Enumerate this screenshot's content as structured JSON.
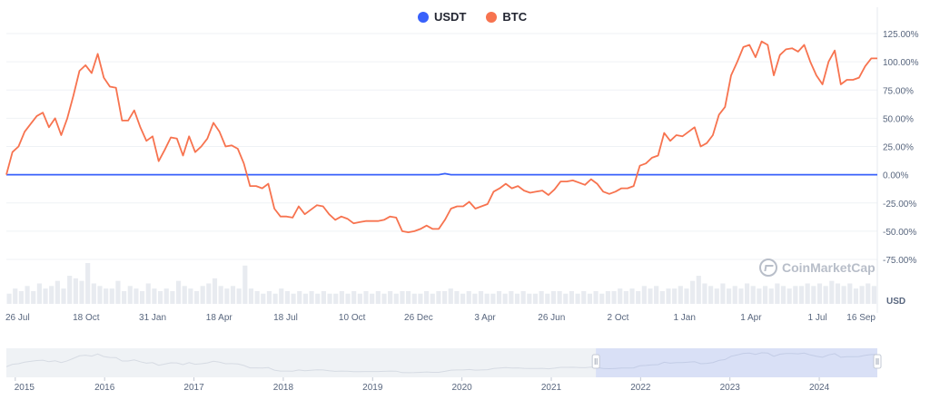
{
  "legend": [
    {
      "name": "USDT",
      "color": "#3861fb"
    },
    {
      "name": "BTC",
      "color": "#f7734f"
    }
  ],
  "watermark": "CoinMarketCap",
  "unit_label": "USD",
  "chart_data": {
    "type": "line",
    "y_axis": {
      "labels": [
        "125.00%",
        "100.00%",
        "75.00%",
        "50.00%",
        "25.00%",
        "0.00%",
        "-25.00%",
        "-50.00%",
        "-75.00%"
      ],
      "values": [
        125,
        100,
        75,
        50,
        25,
        0,
        -25,
        -50,
        -75
      ],
      "ylim": [
        -75,
        125
      ]
    },
    "x_axis": {
      "labels": [
        "26 Jul",
        "18 Oct",
        "31 Jan",
        "18 Apr",
        "18 Jul",
        "10 Oct",
        "26 Dec",
        "3 Apr",
        "26 Jun",
        "2 Oct",
        "1 Jan",
        "1 Apr",
        "1 Jul",
        "16 Sep"
      ],
      "label_index": [
        0,
        12,
        22,
        32,
        42,
        52,
        62,
        72,
        82,
        92,
        102,
        112,
        122,
        131
      ]
    },
    "series": [
      {
        "name": "BTC",
        "color": "#f7734f",
        "values": [
          0,
          20,
          25,
          38,
          45,
          52,
          55,
          42,
          50,
          35,
          50,
          70,
          92,
          97,
          90,
          107,
          86,
          78,
          77,
          48,
          48,
          57,
          42,
          30,
          34,
          12,
          22,
          33,
          32,
          17,
          34,
          20,
          25,
          32,
          46,
          38,
          25,
          26,
          23,
          10,
          -10,
          -10,
          -12,
          -8,
          -30,
          -37,
          -37,
          -38,
          -28,
          -35,
          -31,
          -27,
          -28,
          -35,
          -40,
          -37,
          -39,
          -43,
          -42,
          -41,
          -41,
          -41,
          -40,
          -37,
          -38,
          -50,
          -51,
          -50,
          -48,
          -45,
          -48,
          -48,
          -40,
          -30,
          -28,
          -28,
          -24,
          -30,
          -28,
          -26,
          -15,
          -12,
          -8,
          -12,
          -10,
          -14,
          -16,
          -15,
          -14,
          -18,
          -13,
          -6,
          -6,
          -5,
          -7,
          -9,
          -4,
          -8,
          -15,
          -17,
          -15,
          -12,
          -12,
          -10,
          8,
          10,
          15,
          17,
          37,
          30,
          35,
          34,
          38,
          42,
          25,
          28,
          35,
          53,
          60,
          88,
          100,
          113,
          115,
          104,
          118,
          115,
          88,
          106,
          111,
          112,
          109,
          115,
          100,
          88,
          80,
          100,
          110,
          80,
          84,
          84,
          86,
          96,
          103,
          103
        ],
        "x_index_scale": 1
      },
      {
        "name": "USDT",
        "color": "#3861fb",
        "values": [
          0,
          0,
          0,
          0,
          0,
          0,
          0,
          0,
          0,
          0,
          0,
          0,
          0,
          0,
          0,
          0,
          0,
          0,
          0,
          0,
          0,
          0,
          0,
          0,
          0,
          0,
          0,
          0,
          0,
          0,
          0,
          0,
          0,
          0,
          0,
          0,
          0,
          0,
          0,
          0,
          0,
          0,
          0,
          0,
          0,
          0,
          0,
          0,
          0,
          0,
          0,
          0,
          0,
          0,
          0,
          0,
          0,
          0,
          0,
          0,
          0,
          0,
          0,
          0,
          0,
          0,
          0,
          0,
          0,
          0,
          0,
          0,
          1,
          0,
          0,
          0,
          0,
          0,
          0,
          0,
          0,
          0,
          0,
          0,
          0,
          0,
          0,
          0,
          0,
          0,
          0,
          0,
          0,
          0,
          0,
          0,
          0,
          0,
          0,
          0,
          0,
          0,
          0,
          0,
          0,
          0,
          0,
          0,
          0,
          0,
          0,
          0,
          0,
          0,
          0,
          0,
          0,
          0,
          0,
          0,
          0,
          0,
          0,
          0,
          0,
          0,
          0,
          0,
          0,
          0,
          0,
          0,
          0,
          0,
          0,
          0,
          0,
          0,
          0,
          0,
          0,
          0,
          0,
          0
        ]
      }
    ],
    "volume_bars": [
      4,
      6,
      5,
      7,
      5,
      8,
      6,
      7,
      9,
      6,
      11,
      10,
      9,
      16,
      8,
      7,
      6,
      6,
      9,
      5,
      7,
      6,
      5,
      8,
      6,
      5,
      6,
      5,
      9,
      7,
      6,
      5,
      7,
      8,
      10,
      7,
      6,
      7,
      6,
      15,
      6,
      5,
      4,
      5,
      4,
      6,
      5,
      4,
      5,
      4,
      5,
      4,
      5,
      4,
      4,
      5,
      4,
      5,
      4,
      5,
      4,
      5,
      4,
      5,
      4,
      5,
      5,
      4,
      4,
      5,
      4,
      5,
      5,
      6,
      5,
      4,
      5,
      4,
      5,
      4,
      4,
      5,
      4,
      5,
      4,
      5,
      4,
      4,
      5,
      4,
      5,
      5,
      4,
      5,
      4,
      5,
      4,
      5,
      4,
      5,
      5,
      6,
      5,
      6,
      5,
      7,
      6,
      7,
      5,
      6,
      6,
      7,
      6,
      9,
      11,
      8,
      7,
      6,
      8,
      6,
      7,
      6,
      8,
      7,
      6,
      7,
      6,
      8,
      7,
      6,
      7,
      7,
      8,
      7,
      8,
      7,
      9,
      8,
      7,
      8,
      6,
      7,
      8,
      7
    ],
    "navigator": {
      "year_labels": [
        "2015",
        "2016",
        "2017",
        "2018",
        "2019",
        "2020",
        "2021",
        "2022",
        "2023",
        "2024"
      ],
      "year_values": [
        2015.0,
        2016.0,
        2017.0,
        2018.0,
        2019.0,
        2020.0,
        2021.0,
        2022.0,
        2023.0,
        2024.0
      ],
      "range": [
        2014.9,
        2024.65
      ],
      "selected_range": [
        2021.5,
        2024.65
      ]
    }
  }
}
